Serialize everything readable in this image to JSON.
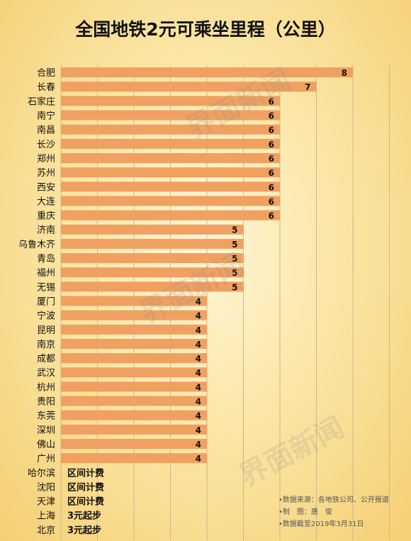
{
  "chart_data": {
    "type": "bar",
    "orientation": "horizontal",
    "title": "全国地铁2元可乘坐里程（公里）",
    "xlim": [
      0,
      10
    ],
    "grid": true,
    "bar_color": "#f0a060",
    "categories": [
      "合肥",
      "长春",
      "石家庄",
      "南宁",
      "南昌",
      "长沙",
      "郑州",
      "苏州",
      "西安",
      "大连",
      "重庆",
      "济南",
      "乌鲁木齐",
      "青岛",
      "福州",
      "无锡",
      "厦门",
      "宁波",
      "昆明",
      "南京",
      "成都",
      "武汉",
      "杭州",
      "贵阳",
      "东莞",
      "深圳",
      "佛山",
      "广州"
    ],
    "values": [
      8,
      7,
      6,
      6,
      6,
      6,
      6,
      6,
      6,
      6,
      6,
      5,
      5,
      5,
      5,
      5,
      4,
      4,
      4,
      4,
      4,
      4,
      4,
      4,
      4,
      4,
      4,
      4
    ],
    "text_rows": [
      {
        "category": "哈尔滨",
        "text": "区间计费"
      },
      {
        "category": "沈阳",
        "text": "区间计费"
      },
      {
        "category": "天津",
        "text": "区间计费"
      },
      {
        "category": "上海",
        "text": "3元起步"
      },
      {
        "category": "北京",
        "text": "3元起步"
      }
    ]
  },
  "watermark": "界面新闻",
  "footer": {
    "source": "•数据来源：各地铁公司、公开报道",
    "maker": "•制　图：唐　俊",
    "date": "•数据截至2019年3月31日"
  }
}
